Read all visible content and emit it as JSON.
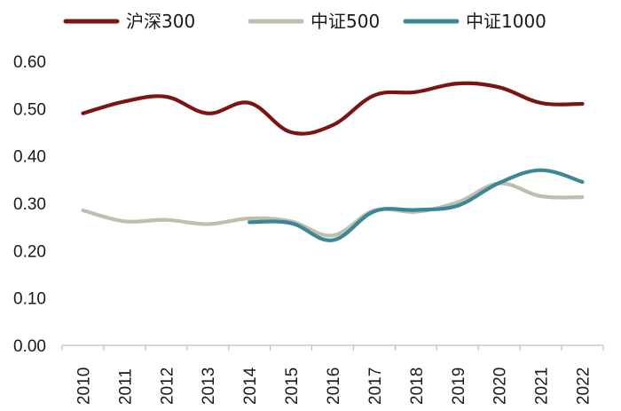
{
  "chart_data": {
    "type": "line",
    "title": "",
    "xlabel": "",
    "ylabel": "",
    "categories": [
      "2010",
      "2011",
      "2012",
      "2013",
      "2014",
      "2015",
      "2016",
      "2017",
      "2018",
      "2019",
      "2020",
      "2021",
      "2022"
    ],
    "ylim": [
      0,
      0.6
    ],
    "yticks": [
      "0.00",
      "0.10",
      "0.20",
      "0.30",
      "0.40",
      "0.50",
      "0.60"
    ],
    "grid": false,
    "legend_position": "top",
    "series": [
      {
        "name": "沪深300",
        "color": "#7b1414",
        "values": [
          0.49,
          0.515,
          0.525,
          0.49,
          0.512,
          0.45,
          0.465,
          0.528,
          0.535,
          0.553,
          0.545,
          0.512,
          0.51
        ]
      },
      {
        "name": "中证500",
        "color": "#bfbfb0",
        "values": [
          0.285,
          0.262,
          0.265,
          0.256,
          0.268,
          0.262,
          0.232,
          0.285,
          0.282,
          0.302,
          0.342,
          0.315,
          0.313
        ]
      },
      {
        "name": "中证1000",
        "color": "#3c8797",
        "values": [
          null,
          null,
          null,
          null,
          0.26,
          0.258,
          0.222,
          0.283,
          0.286,
          0.295,
          0.343,
          0.37,
          0.345
        ]
      }
    ]
  }
}
